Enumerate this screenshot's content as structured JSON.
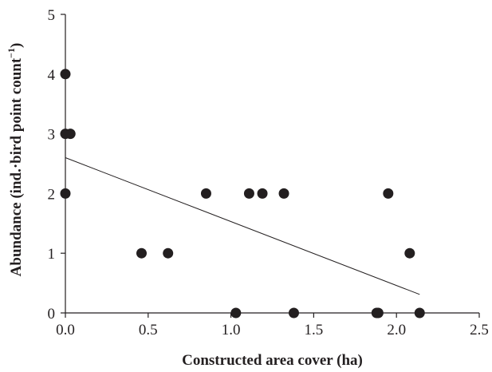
{
  "chart_data": {
    "type": "scatter",
    "title": "",
    "xlabel": "Constructed area cover (ha)",
    "ylabel": "Abundance (ind.·bird point count",
    "ylabel_superscript": "−1",
    "ylabel_close": ")",
    "xlim": [
      0,
      2.5
    ],
    "ylim": [
      0,
      5
    ],
    "xticks": [
      {
        "value": 0,
        "label": "0.0"
      },
      {
        "value": 0.5,
        "label": "0.5"
      },
      {
        "value": 1.0,
        "label": "1.0"
      },
      {
        "value": 1.5,
        "label": "1.5"
      },
      {
        "value": 2.0,
        "label": "2.0"
      },
      {
        "value": 2.5,
        "label": "2.5"
      }
    ],
    "yticks": [
      {
        "value": 0,
        "label": "0"
      },
      {
        "value": 1,
        "label": "1"
      },
      {
        "value": 2,
        "label": "2"
      },
      {
        "value": 3,
        "label": "3"
      },
      {
        "value": 4,
        "label": "4"
      },
      {
        "value": 5,
        "label": "5"
      }
    ],
    "points": [
      {
        "x": 0.0,
        "y": 4
      },
      {
        "x": 0.0,
        "y": 3
      },
      {
        "x": 0.03,
        "y": 3
      },
      {
        "x": 0.0,
        "y": 2
      },
      {
        "x": 0.46,
        "y": 1
      },
      {
        "x": 0.62,
        "y": 1
      },
      {
        "x": 0.85,
        "y": 2
      },
      {
        "x": 1.11,
        "y": 2
      },
      {
        "x": 1.19,
        "y": 2
      },
      {
        "x": 1.32,
        "y": 2
      },
      {
        "x": 1.03,
        "y": 0
      },
      {
        "x": 1.38,
        "y": 0
      },
      {
        "x": 1.88,
        "y": 0
      },
      {
        "x": 1.89,
        "y": 0
      },
      {
        "x": 1.95,
        "y": 2
      },
      {
        "x": 2.08,
        "y": 1
      },
      {
        "x": 2.14,
        "y": 0
      }
    ],
    "trendline": {
      "x": [
        0.0,
        2.14
      ],
      "y": [
        2.6,
        0.31
      ]
    },
    "grid": false,
    "legend": "none",
    "color": "#231f20"
  }
}
